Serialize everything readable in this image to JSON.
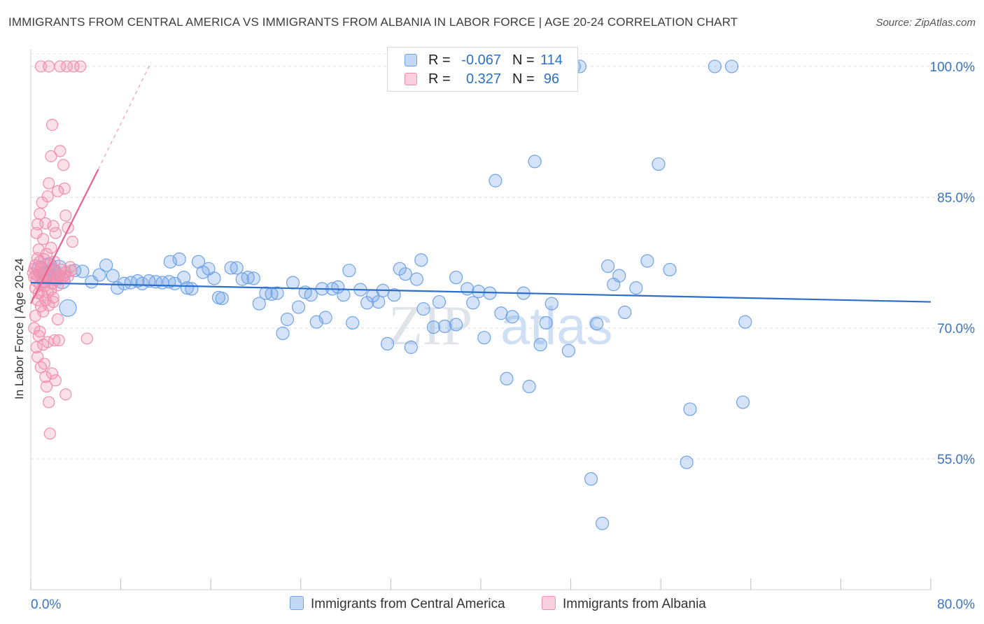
{
  "header": {
    "title": "IMMIGRANTS FROM CENTRAL AMERICA VS IMMIGRANTS FROM ALBANIA IN LABOR FORCE | AGE 20-24 CORRELATION CHART",
    "source": "Source: ZipAtlas.com"
  },
  "watermark": {
    "part1": "ZIP",
    "part2": "atlas"
  },
  "stats": {
    "rows": [
      {
        "r_label": "R =",
        "r_value": "-0.067",
        "n_label": "N =",
        "n_value": "114",
        "color": "#6fa3e8"
      },
      {
        "r_label": "R =",
        "r_value": "0.327",
        "n_label": "N =",
        "n_value": "96",
        "color": "#f08fae"
      }
    ]
  },
  "legend": {
    "items": [
      {
        "label": "Immigrants from Central America",
        "color": "#6fa3e8"
      },
      {
        "label": "Immigrants from Albania",
        "color": "#f08fae"
      }
    ]
  },
  "chart_data": {
    "type": "scatter",
    "title": "IMMIGRANTS FROM CENTRAL AMERICA VS IMMIGRANTS FROM ALBANIA IN LABOR FORCE | AGE 20-24 CORRELATION CHART",
    "xlabel": "",
    "ylabel": "In Labor Force | Age 20-24",
    "xlim": [
      0,
      80
    ],
    "ylim": [
      40,
      102
    ],
    "x_tick_labels": [
      "0.0%",
      "80.0%"
    ],
    "y_ticks": [
      55,
      70,
      85,
      100
    ],
    "y_tick_labels": [
      "55.0%",
      "70.0%",
      "85.0%",
      "100.0%"
    ],
    "grid": true,
    "legend_position": "bottom",
    "colors": {
      "central_america": "#6fa3e8",
      "albania": "#f08fae",
      "central_america_line": "#2c6fc9",
      "albania_line": "#e8618f"
    },
    "series": [
      {
        "name": "Immigrants from Central America",
        "stats": {
          "R": -0.067,
          "N": 114
        },
        "trend": {
          "x": [
            0,
            80
          ],
          "y": [
            75.2,
            73.0
          ]
        },
        "points": [
          [
            0.8,
            76.8
          ],
          [
            1.2,
            75.5
          ],
          [
            1.4,
            76.2
          ],
          [
            1.6,
            77.2
          ],
          [
            2.0,
            76.5
          ],
          [
            2.2,
            75.8
          ],
          [
            2.5,
            76.9
          ],
          [
            2.8,
            75.4
          ],
          [
            3.3,
            72.3
          ],
          [
            3.9,
            76.6
          ],
          [
            4.6,
            76.5
          ],
          [
            5.4,
            75.3
          ],
          [
            6.1,
            76.1
          ],
          [
            6.7,
            77.2
          ],
          [
            7.3,
            76.0
          ],
          [
            7.7,
            74.6
          ],
          [
            8.3,
            75.1
          ],
          [
            8.9,
            75.2
          ],
          [
            9.5,
            75.4
          ],
          [
            9.9,
            75.1
          ],
          [
            10.5,
            75.4
          ],
          [
            11.1,
            75.3
          ],
          [
            11.7,
            75.2
          ],
          [
            12.3,
            75.3
          ],
          [
            12.4,
            77.6
          ],
          [
            12.8,
            75.1
          ],
          [
            13.2,
            77.9
          ],
          [
            13.6,
            75.8
          ],
          [
            13.9,
            74.6
          ],
          [
            14.3,
            74.5
          ],
          [
            14.9,
            77.6
          ],
          [
            15.3,
            76.4
          ],
          [
            15.8,
            76.8
          ],
          [
            16.3,
            75.7
          ],
          [
            16.7,
            73.5
          ],
          [
            17.0,
            73.4
          ],
          [
            17.8,
            76.9
          ],
          [
            18.3,
            76.9
          ],
          [
            18.8,
            75.6
          ],
          [
            19.3,
            75.8
          ],
          [
            19.8,
            75.7
          ],
          [
            20.3,
            72.8
          ],
          [
            20.9,
            74.0
          ],
          [
            21.4,
            73.9
          ],
          [
            21.9,
            74.0
          ],
          [
            22.4,
            69.4
          ],
          [
            22.8,
            71.0
          ],
          [
            23.3,
            75.2
          ],
          [
            23.8,
            72.4
          ],
          [
            24.4,
            74.1
          ],
          [
            24.9,
            73.8
          ],
          [
            25.4,
            70.7
          ],
          [
            25.9,
            74.5
          ],
          [
            26.2,
            71.2
          ],
          [
            26.8,
            74.5
          ],
          [
            27.3,
            74.7
          ],
          [
            27.8,
            73.8
          ],
          [
            28.3,
            76.6
          ],
          [
            28.6,
            70.6
          ],
          [
            29.3,
            74.4
          ],
          [
            29.9,
            72.9
          ],
          [
            30.4,
            73.7
          ],
          [
            30.9,
            73.0
          ],
          [
            31.3,
            74.3
          ],
          [
            31.7,
            68.2
          ],
          [
            32.3,
            73.8
          ],
          [
            32.8,
            76.8
          ],
          [
            33.3,
            76.2
          ],
          [
            33.8,
            67.8
          ],
          [
            34.3,
            75.6
          ],
          [
            34.7,
            77.8
          ],
          [
            34.9,
            72.2
          ],
          [
            35.8,
            70.1
          ],
          [
            36.3,
            73.0
          ],
          [
            36.8,
            70.2
          ],
          [
            37.8,
            70.4
          ],
          [
            37.8,
            75.8
          ],
          [
            38.8,
            74.5
          ],
          [
            39.3,
            72.9
          ],
          [
            39.8,
            74.2
          ],
          [
            40.3,
            68.9
          ],
          [
            40.8,
            74.0
          ],
          [
            41.3,
            86.9
          ],
          [
            41.8,
            71.7
          ],
          [
            42.3,
            64.2
          ],
          [
            42.8,
            71.3
          ],
          [
            43.8,
            74.0
          ],
          [
            44.3,
            63.3
          ],
          [
            44.8,
            89.1
          ],
          [
            45.3,
            68.1
          ],
          [
            45.8,
            70.6
          ],
          [
            46.3,
            72.8
          ],
          [
            47.8,
            67.4
          ],
          [
            48.3,
            100
          ],
          [
            48.8,
            100
          ],
          [
            49.8,
            52.7
          ],
          [
            50.3,
            70.5
          ],
          [
            50.8,
            47.6
          ],
          [
            51.3,
            77.1
          ],
          [
            51.8,
            75.0
          ],
          [
            52.3,
            76.0
          ],
          [
            52.8,
            71.8
          ],
          [
            53.8,
            74.6
          ],
          [
            54.8,
            77.7
          ],
          [
            55.8,
            88.8
          ],
          [
            56.8,
            76.7
          ],
          [
            58.3,
            54.6
          ],
          [
            58.6,
            60.7
          ],
          [
            60.8,
            100
          ],
          [
            62.3,
            100
          ],
          [
            63.3,
            61.5
          ],
          [
            63.5,
            70.7
          ]
        ]
      },
      {
        "name": "Immigrants from Albania",
        "stats": {
          "R": 0.327,
          "N": 96
        },
        "trend": {
          "x": [
            0,
            6.0
          ],
          "y": [
            72.8,
            88.2
          ]
        },
        "trend_dashed": {
          "x": [
            6.0,
            10.7
          ],
          "y": [
            88.2,
            100.5
          ]
        },
        "points": [
          [
            0.2,
            76.3
          ],
          [
            0.3,
            75.8
          ],
          [
            0.3,
            76.8
          ],
          [
            0.4,
            74.6
          ],
          [
            0.4,
            77.2
          ],
          [
            0.5,
            75.4
          ],
          [
            0.5,
            76.1
          ],
          [
            0.6,
            73.2
          ],
          [
            0.6,
            78.0
          ],
          [
            0.7,
            74.0
          ],
          [
            0.7,
            76.4
          ],
          [
            0.8,
            75.0
          ],
          [
            0.8,
            77.6
          ],
          [
            0.9,
            72.5
          ],
          [
            0.9,
            76.9
          ],
          [
            1.0,
            73.8
          ],
          [
            1.0,
            75.7
          ],
          [
            1.1,
            76.2
          ],
          [
            1.1,
            71.9
          ],
          [
            1.2,
            74.8
          ],
          [
            1.2,
            77.9
          ],
          [
            1.3,
            73.2
          ],
          [
            1.3,
            75.3
          ],
          [
            1.4,
            76.6
          ],
          [
            1.4,
            78.5
          ],
          [
            1.5,
            74.1
          ],
          [
            1.5,
            75.9
          ],
          [
            1.6,
            72.6
          ],
          [
            1.6,
            77.3
          ],
          [
            1.7,
            76.0
          ],
          [
            1.8,
            74.4
          ],
          [
            1.8,
            79.2
          ],
          [
            1.9,
            75.1
          ],
          [
            2.0,
            76.8
          ],
          [
            2.0,
            73.5
          ],
          [
            2.1,
            77.6
          ],
          [
            2.2,
            75.5
          ],
          [
            2.3,
            76.3
          ],
          [
            2.4,
            74.9
          ],
          [
            2.5,
            76.1
          ],
          [
            2.6,
            75.6
          ],
          [
            2.7,
            76.7
          ],
          [
            2.8,
            75.8
          ],
          [
            3.0,
            76.0
          ],
          [
            3.1,
            76.4
          ],
          [
            3.3,
            75.9
          ],
          [
            3.5,
            77.0
          ],
          [
            0.4,
            71.4
          ],
          [
            0.5,
            67.8
          ],
          [
            0.6,
            66.7
          ],
          [
            0.8,
            69.6
          ],
          [
            0.9,
            65.5
          ],
          [
            1.1,
            68.1
          ],
          [
            1.2,
            65.9
          ],
          [
            1.3,
            64.4
          ],
          [
            1.4,
            63.3
          ],
          [
            1.5,
            68.4
          ],
          [
            1.6,
            61.5
          ],
          [
            1.7,
            57.9
          ],
          [
            1.9,
            64.8
          ],
          [
            2.1,
            68.6
          ],
          [
            2.2,
            64.0
          ],
          [
            2.4,
            71.0
          ],
          [
            2.5,
            68.6
          ],
          [
            3.1,
            62.4
          ],
          [
            0.5,
            80.9
          ],
          [
            0.6,
            81.9
          ],
          [
            0.7,
            79.0
          ],
          [
            0.8,
            83.1
          ],
          [
            1.0,
            84.4
          ],
          [
            1.1,
            80.2
          ],
          [
            1.3,
            82.0
          ],
          [
            1.5,
            85.1
          ],
          [
            1.6,
            86.6
          ],
          [
            1.8,
            89.7
          ],
          [
            2.0,
            81.7
          ],
          [
            2.2,
            80.9
          ],
          [
            2.4,
            85.7
          ],
          [
            2.6,
            90.3
          ],
          [
            2.9,
            88.7
          ],
          [
            3.1,
            82.9
          ],
          [
            3.3,
            81.5
          ],
          [
            3.7,
            79.9
          ],
          [
            1.9,
            93.3
          ],
          [
            3.0,
            86.0
          ],
          [
            0.9,
            100
          ],
          [
            1.6,
            100
          ],
          [
            2.6,
            100
          ],
          [
            3.2,
            100
          ],
          [
            3.8,
            100
          ],
          [
            4.4,
            100
          ],
          [
            5.0,
            68.8
          ],
          [
            0.3,
            70.0
          ],
          [
            0.7,
            69.1
          ],
          [
            2.0,
            73.0
          ],
          [
            3.6,
            76.6
          ]
        ]
      }
    ]
  }
}
